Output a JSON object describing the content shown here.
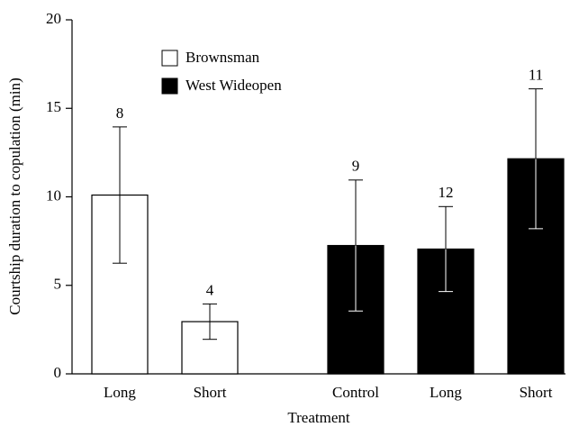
{
  "chart_data": {
    "type": "bar",
    "ylabel": "Courtship duration to copulation (min)",
    "xlabel": "Treatment",
    "categories": [
      "Long",
      "Short",
      "Control",
      "Long",
      "Short"
    ],
    "series": [
      {
        "name": "Brownsman",
        "color": "#ffffff",
        "values": [
          10.1,
          2.95,
          null,
          null,
          null
        ],
        "errors": [
          3.85,
          1.0,
          null,
          null,
          null
        ]
      },
      {
        "name": "West Wideopen",
        "color": "#000000",
        "values": [
          null,
          null,
          7.25,
          7.05,
          12.15
        ],
        "errors": [
          null,
          null,
          3.7,
          2.4,
          3.95
        ]
      }
    ],
    "sample_sizes": [
      8,
      4,
      9,
      12,
      11
    ],
    "ylim": [
      0,
      20
    ],
    "yticks": [
      0,
      5,
      10,
      15,
      20
    ],
    "grid": false,
    "legend": "upper left"
  }
}
